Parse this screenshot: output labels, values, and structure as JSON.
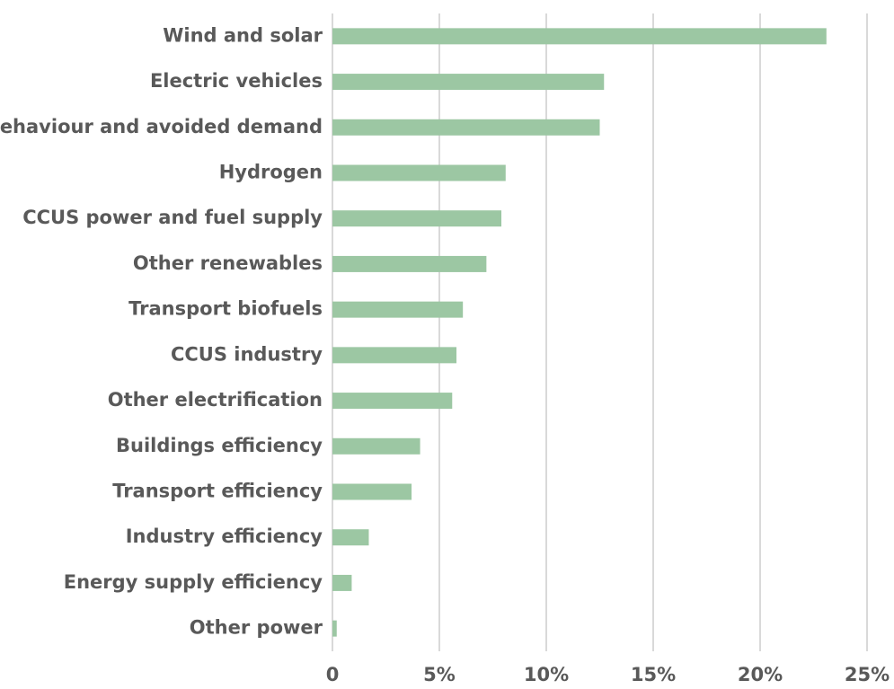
{
  "chart_data": {
    "type": "bar",
    "orientation": "horizontal",
    "categories": [
      "Wind and solar",
      "Electric vehicles",
      "Behaviour and avoided demand",
      "Hydrogen",
      "CCUS power and fuel supply",
      "Other renewables",
      "Transport biofuels",
      "CCUS industry",
      "Other electrification",
      "Buildings efficiency",
      "Transport efficiency",
      "Industry efficiency",
      "Energy supply efficiency",
      "Other power"
    ],
    "values": [
      23.1,
      12.7,
      12.5,
      8.1,
      7.9,
      7.2,
      6.1,
      5.8,
      5.6,
      4.1,
      3.7,
      1.7,
      0.9,
      0.2
    ],
    "color": "#9cc7a3",
    "xlim": [
      0,
      25
    ],
    "xticks": [
      0,
      {
        "value": 5,
        "label": "5%"
      },
      {
        "value": 10,
        "label": "10%"
      },
      {
        "value": 15,
        "label": "15%"
      },
      {
        "value": 20,
        "label": "20%"
      },
      {
        "value": 25,
        "label": "25%"
      }
    ],
    "grid": true
  }
}
